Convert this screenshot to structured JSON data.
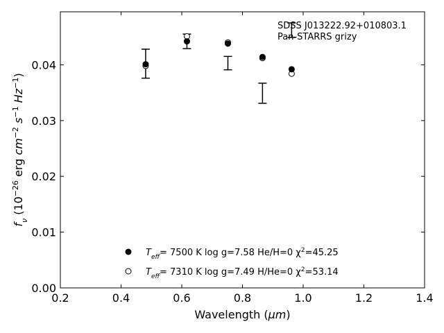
{
  "chart_data": {
    "type": "scatter",
    "xlabel": "Wavelength (μm)",
    "ylabel": "f_ν (10^-26 erg cm^-2 s^-1 Hz^-1)",
    "xlim": [
      0.2,
      1.4
    ],
    "ylim": [
      0.0,
      0.0495
    ],
    "x_ticks": [
      0.2,
      0.4,
      0.6,
      0.8,
      1.0,
      1.2,
      1.4
    ],
    "x_tick_labels": [
      "0.2",
      "0.4",
      "0.6",
      "0.8",
      "1.0",
      "1.2",
      "1.4"
    ],
    "y_ticks": [
      0.0,
      0.01,
      0.02,
      0.03,
      0.04
    ],
    "y_tick_labels": [
      "0.00",
      "0.01",
      "0.02",
      "0.03",
      "0.04"
    ],
    "annotation_lines": [
      "SDSS J013222.92+010803.1",
      "Pan-STARRS grizy"
    ],
    "observed": {
      "x": [
        0.481,
        0.617,
        0.752,
        0.866,
        0.962
      ],
      "y": [
        0.0402,
        0.0442,
        0.0403,
        0.0349,
        0.0462
      ],
      "yerr": [
        0.0026,
        0.0013,
        0.0012,
        0.0018,
        0.0013
      ]
    },
    "series": [
      {
        "marker": "filled",
        "label_parts": [
          "T",
          "eff",
          "=  7500 K  log g=7.58  He/H=0  χ",
          "2",
          "=45.25"
        ],
        "x": [
          0.481,
          0.617,
          0.752,
          0.866,
          0.962
        ],
        "y": [
          0.0401,
          0.0442,
          0.0438,
          0.0414,
          0.0392
        ]
      },
      {
        "marker": "open",
        "label_parts": [
          "T",
          "eff",
          "=  7310 K  log g=7.49  H/He=0  χ",
          "2",
          "=53.14"
        ],
        "x": [
          0.481,
          0.617,
          0.752,
          0.866,
          0.962
        ],
        "y": [
          0.0398,
          0.0451,
          0.044,
          0.0412,
          0.0384
        ]
      }
    ],
    "legend_position": "lower-center",
    "grid": false
  }
}
